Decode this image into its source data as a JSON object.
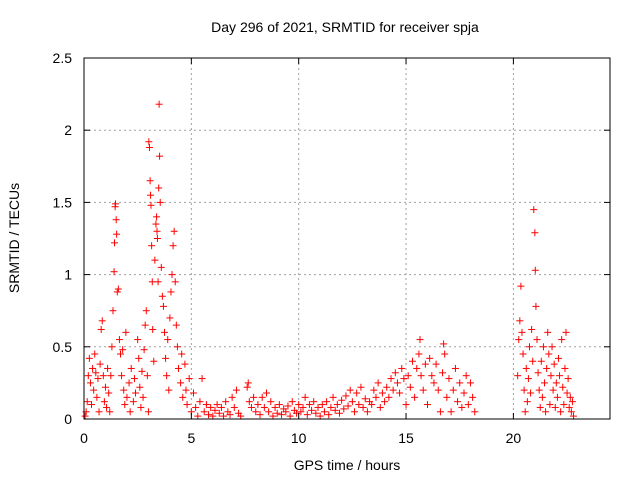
{
  "chart_data": {
    "type": "scatter",
    "title": "Day 296 of 2021, SRMTID for receiver spja",
    "xlabel": "GPS time / hours",
    "ylabel": "SRMTID / TECUs",
    "xlim": [
      0,
      24.5
    ],
    "ylim": [
      0,
      2.5
    ],
    "xticks": [
      0,
      5,
      10,
      15,
      20
    ],
    "xtick_labels": [
      "0",
      "5",
      "10",
      "15",
      "20"
    ],
    "yticks": [
      0,
      0.5,
      1,
      1.5,
      2,
      2.5
    ],
    "ytick_labels": [
      "0",
      "0.5",
      "1",
      "1.5",
      "2",
      "2.5"
    ],
    "grid": true,
    "marker": "+",
    "marker_color": "#ff0000",
    "series": [
      {
        "name": "SRMTID",
        "points": [
          [
            0.05,
            0.02
          ],
          [
            0.1,
            0.05
          ],
          [
            0.15,
            0.12
          ],
          [
            0.2,
            0.3
          ],
          [
            0.25,
            0.42
          ],
          [
            0.3,
            0.25
          ],
          [
            0.35,
            0.1
          ],
          [
            0.4,
            0.35
          ],
          [
            0.45,
            0.2
          ],
          [
            0.5,
            0.45
          ],
          [
            0.55,
            0.32
          ],
          [
            0.6,
            0.15
          ],
          [
            0.65,
            0.28
          ],
          [
            0.7,
            0.05
          ],
          [
            0.75,
            0.38
          ],
          [
            0.8,
            0.62
          ],
          [
            0.85,
            0.68
          ],
          [
            0.9,
            0.3
          ],
          [
            0.95,
            0.12
          ],
          [
            1.0,
            0.22
          ],
          [
            1.05,
            0.08
          ],
          [
            1.1,
            0.35
          ],
          [
            1.15,
            0.18
          ],
          [
            1.2,
            0.05
          ],
          [
            1.25,
            0.3
          ],
          [
            1.3,
            0.5
          ],
          [
            1.35,
            0.75
          ],
          [
            1.4,
            1.02
          ],
          [
            1.42,
            1.22
          ],
          [
            1.45,
            1.47
          ],
          [
            1.47,
            1.49
          ],
          [
            1.5,
            1.38
          ],
          [
            1.52,
            1.28
          ],
          [
            1.55,
            0.88
          ],
          [
            1.6,
            0.9
          ],
          [
            1.65,
            0.55
          ],
          [
            1.7,
            0.45
          ],
          [
            1.75,
            0.3
          ],
          [
            1.8,
            0.48
          ],
          [
            1.85,
            0.2
          ],
          [
            1.9,
            0.1
          ],
          [
            1.95,
            0.6
          ],
          [
            2.0,
            0.15
          ],
          [
            2.1,
            0.25
          ],
          [
            2.15,
            0.05
          ],
          [
            2.2,
            0.35
          ],
          [
            2.3,
            0.12
          ],
          [
            2.35,
            0.28
          ],
          [
            2.4,
            0.18
          ],
          [
            2.5,
            0.55
          ],
          [
            2.55,
            0.42
          ],
          [
            2.6,
            0.22
          ],
          [
            2.65,
            0.08
          ],
          [
            2.7,
            0.33
          ],
          [
            2.75,
            0.15
          ],
          [
            2.8,
            0.48
          ],
          [
            2.85,
            0.65
          ],
          [
            2.9,
            0.75
          ],
          [
            2.95,
            0.3
          ],
          [
            3.0,
            0.05
          ],
          [
            3.02,
            1.92
          ],
          [
            3.05,
            1.88
          ],
          [
            3.08,
            1.65
          ],
          [
            3.1,
            1.55
          ],
          [
            3.12,
            1.48
          ],
          [
            3.15,
            1.2
          ],
          [
            3.18,
            0.95
          ],
          [
            3.2,
            0.62
          ],
          [
            3.25,
            0.4
          ],
          [
            3.3,
            1.1
          ],
          [
            3.35,
            1.35
          ],
          [
            3.38,
            1.4
          ],
          [
            3.4,
            1.3
          ],
          [
            3.42,
            1.25
          ],
          [
            3.45,
            0.95
          ],
          [
            3.48,
            1.6
          ],
          [
            3.5,
            2.18
          ],
          [
            3.52,
            1.82
          ],
          [
            3.55,
            1.5
          ],
          [
            3.6,
            1.05
          ],
          [
            3.65,
            0.85
          ],
          [
            3.7,
            0.78
          ],
          [
            3.75,
            0.6
          ],
          [
            3.8,
            0.42
          ],
          [
            3.85,
            0.3
          ],
          [
            3.9,
            0.55
          ],
          [
            3.95,
            0.2
          ],
          [
            4.0,
            0.7
          ],
          [
            4.05,
            0.88
          ],
          [
            4.1,
            1.0
          ],
          [
            4.15,
            1.2
          ],
          [
            4.2,
            1.3
          ],
          [
            4.25,
            0.95
          ],
          [
            4.3,
            0.65
          ],
          [
            4.35,
            0.5
          ],
          [
            4.4,
            0.35
          ],
          [
            4.5,
            0.25
          ],
          [
            4.55,
            0.45
          ],
          [
            4.6,
            0.15
          ],
          [
            4.7,
            0.38
          ],
          [
            4.75,
            0.2
          ],
          [
            4.8,
            0.1
          ],
          [
            4.9,
            0.28
          ],
          [
            5.0,
            0.05
          ],
          [
            5.1,
            0.18
          ],
          [
            5.2,
            0.08
          ],
          [
            5.3,
            0.02
          ],
          [
            5.4,
            0.12
          ],
          [
            5.5,
            0.28
          ],
          [
            5.6,
            0.05
          ],
          [
            5.7,
            0.1
          ],
          [
            5.8,
            0.03
          ],
          [
            5.9,
            0.08
          ],
          [
            6.0,
            0.02
          ],
          [
            6.1,
            0.06
          ],
          [
            6.2,
            0.1
          ],
          [
            6.3,
            0.04
          ],
          [
            6.4,
            0.08
          ],
          [
            6.5,
            0.02
          ],
          [
            6.6,
            0.12
          ],
          [
            6.7,
            0.05
          ],
          [
            6.8,
            0.03
          ],
          [
            6.9,
            0.15
          ],
          [
            7.0,
            0.08
          ],
          [
            7.1,
            0.2
          ],
          [
            7.2,
            0.04
          ],
          [
            7.3,
            0.02
          ],
          [
            7.6,
            0.22
          ],
          [
            7.65,
            0.25
          ],
          [
            7.7,
            0.12
          ],
          [
            7.8,
            0.08
          ],
          [
            7.9,
            0.15
          ],
          [
            8.0,
            0.05
          ],
          [
            8.1,
            0.1
          ],
          [
            8.2,
            0.03
          ],
          [
            8.3,
            0.15
          ],
          [
            8.4,
            0.08
          ],
          [
            8.5,
            0.18
          ],
          [
            8.6,
            0.05
          ],
          [
            8.7,
            0.12
          ],
          [
            8.8,
            0.02
          ],
          [
            8.9,
            0.08
          ],
          [
            9.0,
            0.04
          ],
          [
            9.1,
            0.1
          ],
          [
            9.2,
            0.03
          ],
          [
            9.3,
            0.07
          ],
          [
            9.4,
            0.05
          ],
          [
            9.5,
            0.09
          ],
          [
            9.6,
            0.02
          ],
          [
            9.7,
            0.12
          ],
          [
            9.8,
            0.06
          ],
          [
            9.9,
            0.04
          ],
          [
            10.0,
            0.1
          ],
          [
            10.1,
            0.05
          ],
          [
            10.2,
            0.08
          ],
          [
            10.3,
            0.15
          ],
          [
            10.4,
            0.03
          ],
          [
            10.5,
            0.1
          ],
          [
            10.6,
            0.06
          ],
          [
            10.7,
            0.12
          ],
          [
            10.8,
            0.04
          ],
          [
            10.9,
            0.08
          ],
          [
            11.0,
            0.02
          ],
          [
            11.1,
            0.1
          ],
          [
            11.2,
            0.05
          ],
          [
            11.3,
            0.12
          ],
          [
            11.4,
            0.03
          ],
          [
            11.5,
            0.08
          ],
          [
            11.6,
            0.15
          ],
          [
            11.7,
            0.06
          ],
          [
            11.8,
            0.1
          ],
          [
            11.9,
            0.04
          ],
          [
            12.0,
            0.13
          ],
          [
            12.1,
            0.07
          ],
          [
            12.2,
            0.16
          ],
          [
            12.3,
            0.09
          ],
          [
            12.4,
            0.2
          ],
          [
            12.5,
            0.12
          ],
          [
            12.6,
            0.05
          ],
          [
            12.7,
            0.18
          ],
          [
            12.8,
            0.1
          ],
          [
            12.9,
            0.22
          ],
          [
            13.0,
            0.08
          ],
          [
            13.1,
            0.14
          ],
          [
            13.2,
            0.05
          ],
          [
            13.3,
            0.12
          ],
          [
            13.4,
            0.1
          ],
          [
            13.5,
            0.2
          ],
          [
            13.6,
            0.15
          ],
          [
            13.7,
            0.25
          ],
          [
            13.8,
            0.08
          ],
          [
            13.9,
            0.18
          ],
          [
            14.0,
            0.12
          ],
          [
            14.1,
            0.22
          ],
          [
            14.2,
            0.15
          ],
          [
            14.3,
            0.28
          ],
          [
            14.4,
            0.2
          ],
          [
            14.5,
            0.32
          ],
          [
            14.6,
            0.25
          ],
          [
            14.7,
            0.18
          ],
          [
            14.8,
            0.35
          ],
          [
            14.9,
            0.28
          ],
          [
            15.0,
            0.1
          ],
          [
            15.1,
            0.3
          ],
          [
            15.2,
            0.22
          ],
          [
            15.3,
            0.4
          ],
          [
            15.4,
            0.15
          ],
          [
            15.5,
            0.35
          ],
          [
            15.6,
            0.45
          ],
          [
            15.65,
            0.55
          ],
          [
            15.7,
            0.3
          ],
          [
            15.8,
            0.2
          ],
          [
            15.9,
            0.38
          ],
          [
            16.0,
            0.1
          ],
          [
            16.1,
            0.42
          ],
          [
            16.2,
            0.3
          ],
          [
            16.3,
            0.25
          ],
          [
            16.4,
            0.38
          ],
          [
            16.5,
            0.2
          ],
          [
            16.6,
            0.05
          ],
          [
            16.7,
            0.32
          ],
          [
            16.75,
            0.52
          ],
          [
            16.8,
            0.45
          ],
          [
            16.9,
            0.15
          ],
          [
            17.0,
            0.28
          ],
          [
            17.1,
            0.05
          ],
          [
            17.2,
            0.2
          ],
          [
            17.3,
            0.35
          ],
          [
            17.4,
            0.12
          ],
          [
            17.5,
            0.25
          ],
          [
            17.6,
            0.08
          ],
          [
            17.7,
            0.18
          ],
          [
            17.8,
            0.3
          ],
          [
            17.9,
            0.1
          ],
          [
            18.0,
            0.25
          ],
          [
            18.1,
            0.15
          ],
          [
            18.2,
            0.05
          ],
          [
            20.2,
            0.3
          ],
          [
            20.25,
            0.55
          ],
          [
            20.3,
            0.68
          ],
          [
            20.35,
            0.92
          ],
          [
            20.4,
            0.6
          ],
          [
            20.45,
            0.45
          ],
          [
            20.5,
            0.2
          ],
          [
            20.55,
            0.05
          ],
          [
            20.6,
            0.35
          ],
          [
            20.65,
            0.12
          ],
          [
            20.7,
            0.28
          ],
          [
            20.75,
            0.5
          ],
          [
            20.8,
            0.18
          ],
          [
            20.85,
            0.62
          ],
          [
            20.9,
            0.4
          ],
          [
            20.95,
            1.45
          ],
          [
            21.0,
            1.29
          ],
          [
            21.02,
            1.03
          ],
          [
            21.05,
            0.78
          ],
          [
            21.1,
            0.55
          ],
          [
            21.15,
            0.32
          ],
          [
            21.2,
            0.2
          ],
          [
            21.25,
            0.08
          ],
          [
            21.3,
            0.4
          ],
          [
            21.35,
            0.15
          ],
          [
            21.4,
            0.5
          ],
          [
            21.45,
            0.25
          ],
          [
            21.5,
            0.05
          ],
          [
            21.55,
            0.35
          ],
          [
            21.6,
            0.6
          ],
          [
            21.65,
            0.45
          ],
          [
            21.7,
            0.1
          ],
          [
            21.75,
            0.3
          ],
          [
            21.8,
            0.5
          ],
          [
            21.85,
            0.2
          ],
          [
            21.9,
            0.38
          ],
          [
            21.95,
            0.08
          ],
          [
            22.0,
            0.25
          ],
          [
            22.05,
            0.15
          ],
          [
            22.1,
            0.42
          ],
          [
            22.15,
            0.3
          ],
          [
            22.2,
            0.05
          ],
          [
            22.25,
            0.55
          ],
          [
            22.3,
            0.22
          ],
          [
            22.35,
            0.1
          ],
          [
            22.4,
            0.35
          ],
          [
            22.45,
            0.6
          ],
          [
            22.5,
            0.18
          ],
          [
            22.55,
            0.28
          ],
          [
            22.6,
            0.08
          ],
          [
            22.65,
            0.15
          ],
          [
            22.7,
            0.05
          ],
          [
            22.75,
            0.12
          ],
          [
            22.8,
            0.02
          ]
        ]
      }
    ]
  }
}
